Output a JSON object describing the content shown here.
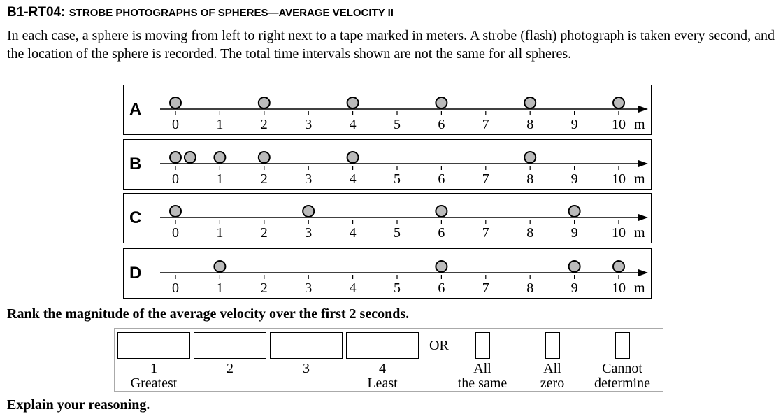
{
  "title": {
    "code": "B1-RT04:",
    "text": "Strobe Photographs of Spheres—Average Velocity II"
  },
  "intro": "In each case, a sphere is moving from left to right next to a tape marked in meters. A strobe (flash) photograph is taken every second, and the location of the sphere is recorded. The total time intervals shown are not the same for all spheres.",
  "axis": {
    "ticks": [
      "0",
      "1",
      "2",
      "3",
      "4",
      "5",
      "6",
      "7",
      "8",
      "9",
      "10"
    ],
    "unit": "m"
  },
  "panels": [
    {
      "label": "A",
      "positions": [
        0,
        2,
        4,
        6,
        8,
        10
      ]
    },
    {
      "label": "B",
      "positions": [
        0,
        0.33,
        1,
        2,
        4,
        8
      ]
    },
    {
      "label": "C",
      "positions": [
        0,
        3,
        6,
        9
      ]
    },
    {
      "label": "D",
      "positions": [
        1,
        6,
        9,
        10
      ]
    }
  ],
  "question": "Rank the magnitude of the average velocity over the first 2 seconds.",
  "ranking": {
    "ranks": [
      {
        "num": "1",
        "sub": "Greatest"
      },
      {
        "num": "2",
        "sub": ""
      },
      {
        "num": "3",
        "sub": ""
      },
      {
        "num": "4",
        "sub": "Least"
      }
    ],
    "or": "OR",
    "options": [
      {
        "line1": "All",
        "line2": "the same"
      },
      {
        "line1": "All",
        "line2": "zero"
      },
      {
        "line1": "Cannot",
        "line2": "determine"
      }
    ]
  },
  "explain": "Explain your reasoning."
}
